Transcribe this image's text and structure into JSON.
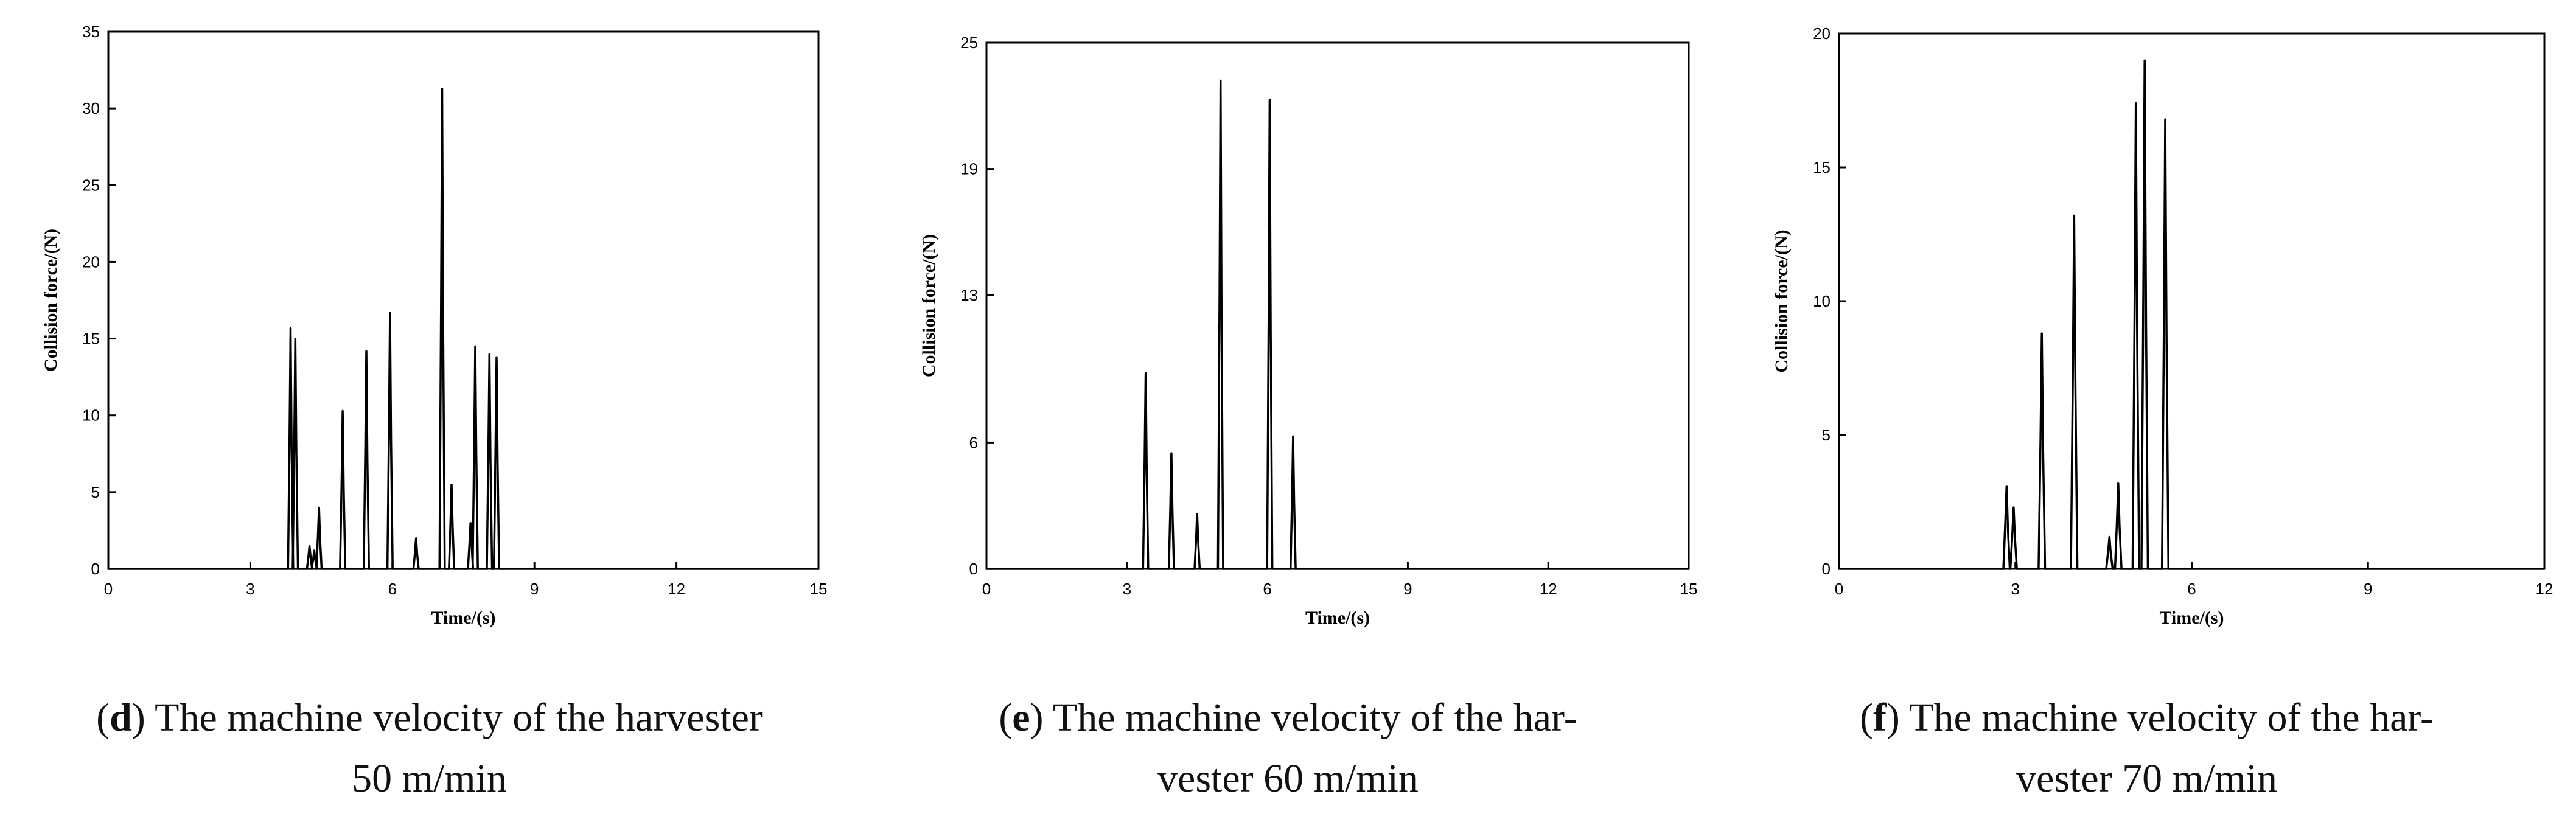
{
  "chart_data": [
    {
      "type": "line",
      "caption_letter": "d",
      "caption_line1": "The machine velocity of the harvester",
      "caption_line2": "50 m/min",
      "xlabel": "Time/(s)",
      "ylabel": "Collision force/(N)",
      "xlim": [
        0,
        15
      ],
      "ylim": [
        0,
        35
      ],
      "xticks": [
        0,
        3,
        6,
        9,
        12,
        15
      ],
      "yticks": [
        0,
        5,
        10,
        15,
        20,
        25,
        30,
        35
      ],
      "grid": false,
      "peaks": [
        {
          "x": 3.85,
          "y": 15.7
        },
        {
          "x": 3.95,
          "y": 15.0
        },
        {
          "x": 4.25,
          "y": 1.5
        },
        {
          "x": 4.35,
          "y": 1.2
        },
        {
          "x": 4.45,
          "y": 4.0
        },
        {
          "x": 4.95,
          "y": 10.3
        },
        {
          "x": 5.45,
          "y": 14.2
        },
        {
          "x": 5.95,
          "y": 16.7
        },
        {
          "x": 6.5,
          "y": 2.0
        },
        {
          "x": 7.05,
          "y": 31.3
        },
        {
          "x": 7.25,
          "y": 5.5
        },
        {
          "x": 7.65,
          "y": 3.0
        },
        {
          "x": 7.75,
          "y": 14.5
        },
        {
          "x": 8.05,
          "y": 14.0
        },
        {
          "x": 8.2,
          "y": 13.8
        }
      ]
    },
    {
      "type": "line",
      "caption_letter": "e",
      "caption_line1": "The machine velocity of the har-",
      "caption_line2": "vester 60 m/min",
      "xlabel": "Time/(s)",
      "ylabel": "Collision force/(N)",
      "xlim": [
        0,
        15
      ],
      "ylim": [
        0,
        25
      ],
      "xticks": [
        0,
        3,
        6,
        9,
        12,
        15
      ],
      "yticks": [
        0,
        6,
        13,
        19,
        25
      ],
      "grid": false,
      "peaks": [
        {
          "x": 3.4,
          "y": 9.3
        },
        {
          "x": 3.95,
          "y": 5.5
        },
        {
          "x": 4.5,
          "y": 2.6
        },
        {
          "x": 5.0,
          "y": 23.2
        },
        {
          "x": 6.05,
          "y": 22.3
        },
        {
          "x": 6.55,
          "y": 6.3
        }
      ]
    },
    {
      "type": "line",
      "caption_letter": "f",
      "caption_line1": "The machine velocity of the har-",
      "caption_line2": "vester 70 m/min",
      "xlabel": "Time/(s)",
      "ylabel": "Collision force/(N)",
      "xlim": [
        0,
        12
      ],
      "ylim": [
        0,
        20
      ],
      "xticks": [
        0,
        3,
        6,
        9,
        12
      ],
      "yticks": [
        0,
        5,
        10,
        15,
        20
      ],
      "grid": false,
      "peaks": [
        {
          "x": 2.85,
          "y": 3.1
        },
        {
          "x": 2.97,
          "y": 2.3
        },
        {
          "x": 3.45,
          "y": 8.8
        },
        {
          "x": 4.0,
          "y": 13.2
        },
        {
          "x": 4.6,
          "y": 1.2
        },
        {
          "x": 4.75,
          "y": 3.2
        },
        {
          "x": 5.05,
          "y": 17.4
        },
        {
          "x": 5.2,
          "y": 19.0
        },
        {
          "x": 5.55,
          "y": 16.8
        }
      ]
    }
  ]
}
